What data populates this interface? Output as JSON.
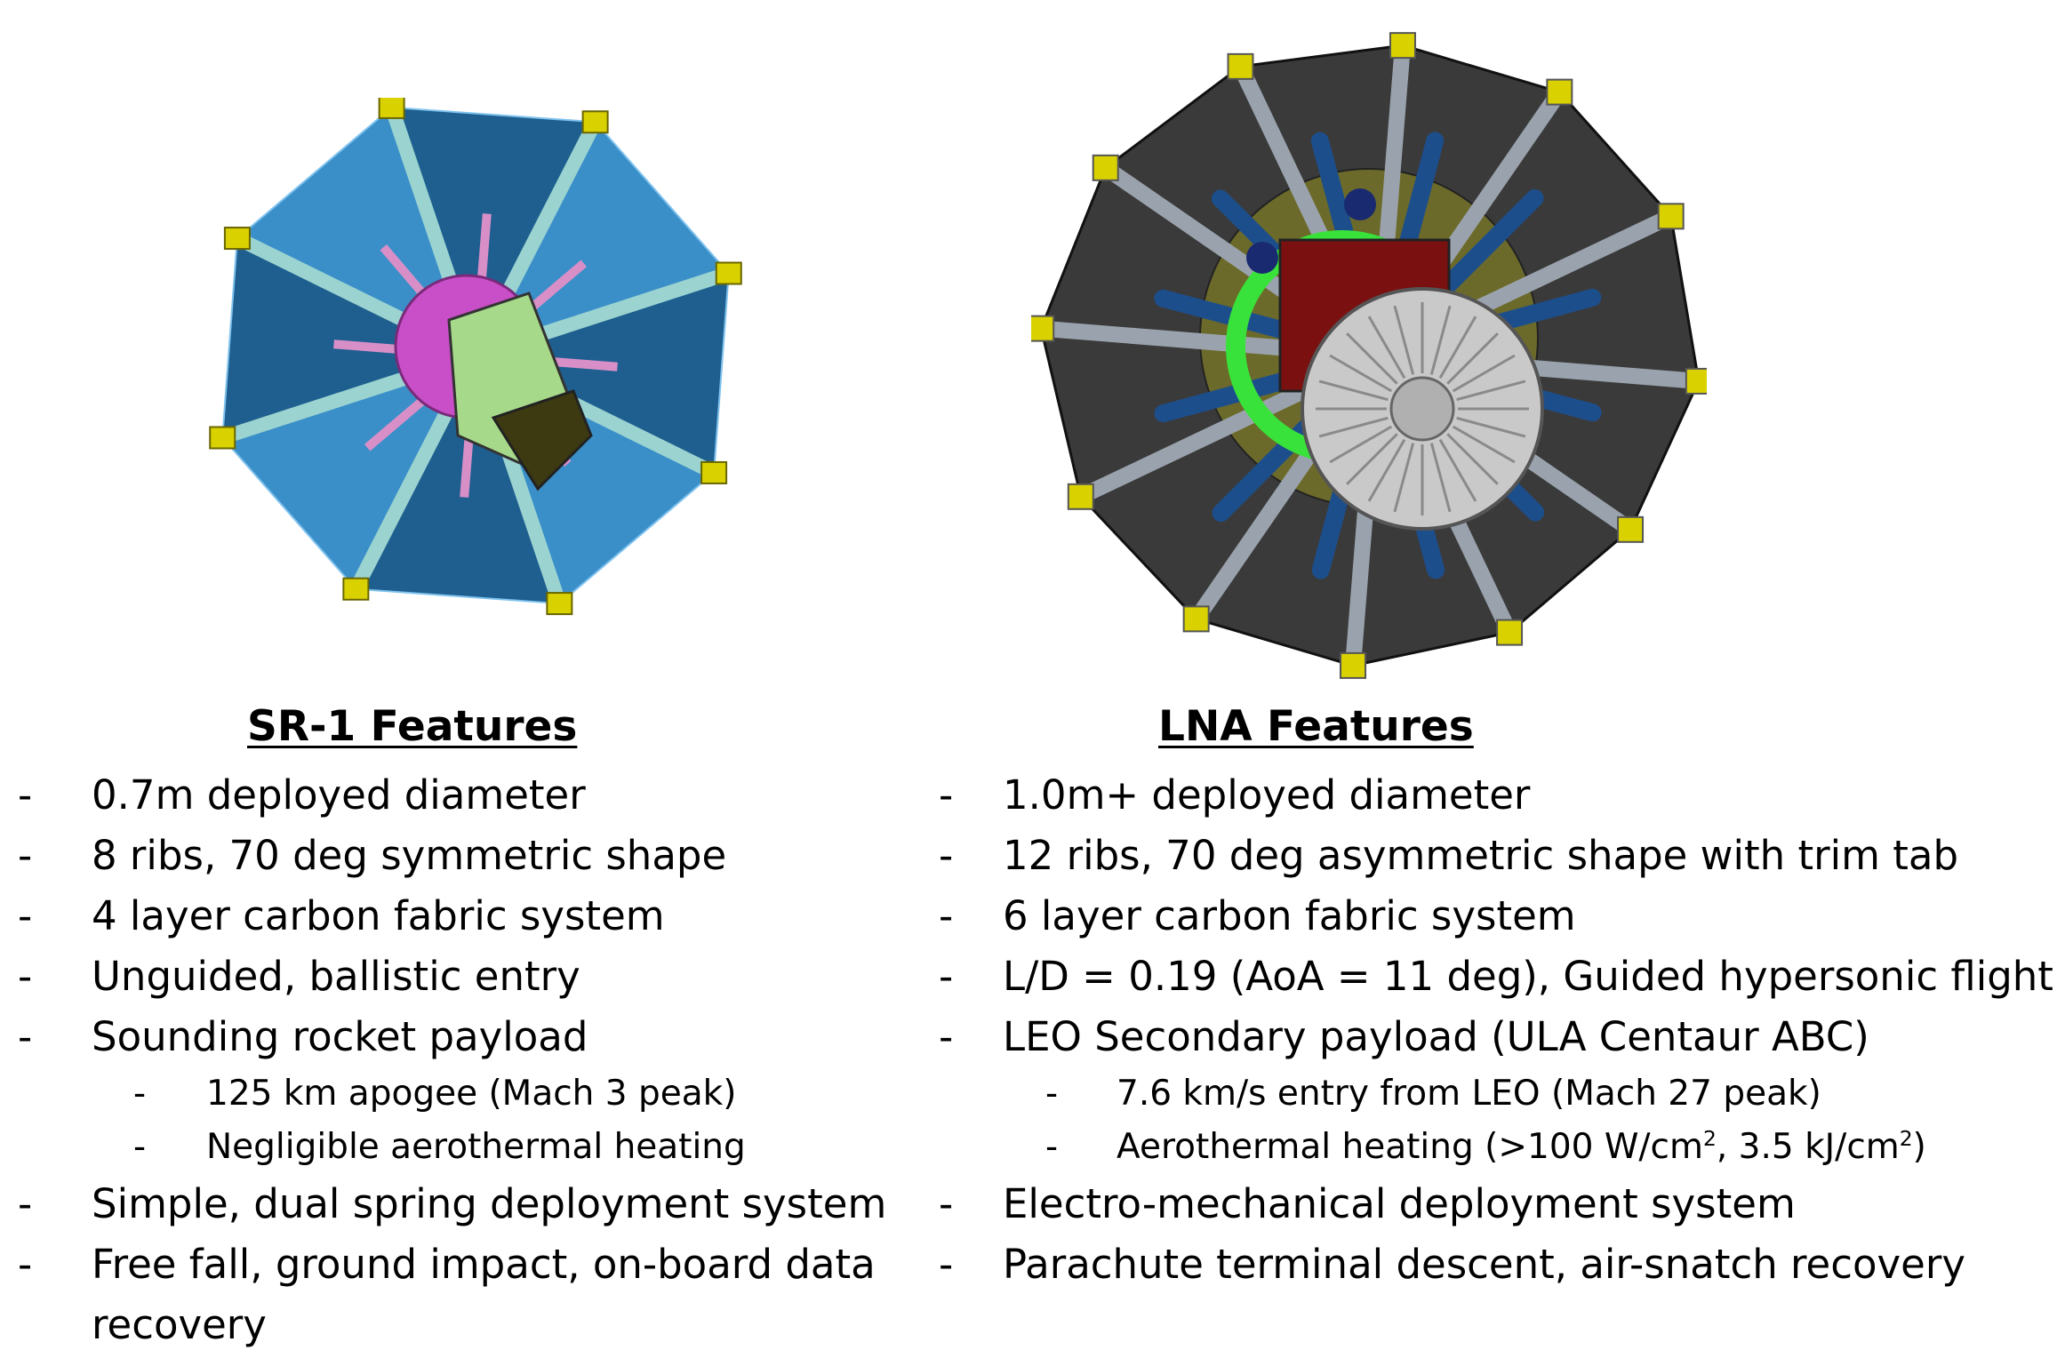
{
  "left": {
    "title": "SR-1 Features",
    "items": [
      {
        "text": "0.7m deployed diameter"
      },
      {
        "text": "8 ribs, 70 deg symmetric shape"
      },
      {
        "text": "4 layer carbon fabric system"
      },
      {
        "text": "Unguided, ballistic entry"
      },
      {
        "text": "Sounding rocket payload"
      },
      {
        "sub": true,
        "text": "125 km apogee (Mach 3 peak)"
      },
      {
        "sub": true,
        "text": "Negligible aerothermal heating"
      },
      {
        "text": "Simple, dual spring deployment system"
      },
      {
        "text": "Free fall, ground impact, on-board data recovery",
        "wrap": true
      }
    ]
  },
  "right": {
    "title": "LNA Features",
    "items": [
      {
        "text": "1.0m+ deployed diameter"
      },
      {
        "text": "12 ribs, 70 deg asymmetric shape with trim tab"
      },
      {
        "text": "6 layer carbon fabric system"
      },
      {
        "text": "L/D = 0.19 (AoA = 11 deg), Guided hypersonic flight"
      },
      {
        "text": "LEO Secondary payload (ULA Centaur ABC)"
      },
      {
        "sub": true,
        "text": "7.6 km/s entry from LEO (Mach 27 peak)"
      },
      {
        "sub": true,
        "html_parts": [
          "Aerothermal heating (>100 W/cm",
          "2",
          ", 3.5 kJ/cm",
          "2",
          ")"
        ]
      },
      {
        "text": "Electro-mechanical deployment system"
      },
      {
        "text": "Parachute terminal descent, air-snatch recovery"
      }
    ]
  },
  "dash": "-",
  "colors": {
    "sr1_panel": "#3b8fc9",
    "sr1_panel_dark": "#1f5f8f",
    "sr1_rib": "#9ad3d0",
    "lna_panel": "#3a3a3a",
    "lna_rib": "#9aa3ad",
    "lna_arm": "#1d4e8c",
    "lna_ring": "#39e23a",
    "lna_disc": "#c9c9c9",
    "fitting": "#d9d200"
  }
}
